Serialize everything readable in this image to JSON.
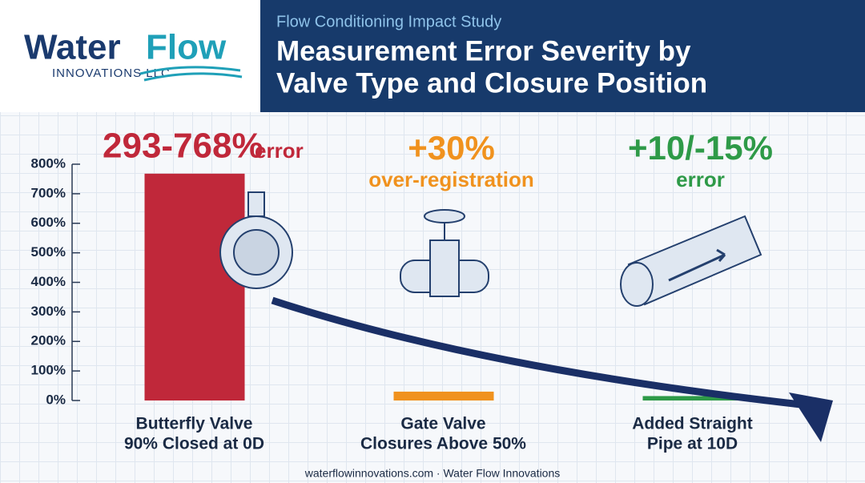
{
  "header": {
    "logo": {
      "name": [
        "Water",
        "Flow"
      ],
      "tagline": "INNOVATIONS LLC"
    },
    "subtitle": "Flow Conditioning Impact Study",
    "title": [
      "Measurement Error Severity by",
      "Valve Type and Closure Position"
    ]
  },
  "chart_data": {
    "type": "bar",
    "categories": [
      [
        "Butterfly Valve",
        "90% Closed at 0D"
      ],
      [
        "Gate Valve",
        "Closures Above 50%"
      ],
      [
        "Added Straight",
        "Pipe at 10D"
      ]
    ],
    "values": [
      768,
      30,
      15
    ],
    "colors": [
      "#c0283a",
      "#f0921e",
      "#2e9a48"
    ],
    "annotations": [
      [
        "293-768%",
        "error"
      ],
      [
        "+30%",
        "over-registration"
      ],
      [
        "+10/-15%",
        "error"
      ]
    ],
    "ylim": [
      0,
      800
    ],
    "yticks": [
      {
        "value": 0,
        "label": "0%"
      },
      {
        "value": 100,
        "label": "100%"
      },
      {
        "value": 200,
        "label": "200%"
      },
      {
        "value": 300,
        "label": "300%"
      },
      {
        "value": 400,
        "label": "400%"
      },
      {
        "value": 500,
        "label": "500%"
      },
      {
        "value": 600,
        "label": "600%"
      },
      {
        "value": 700,
        "label": "700%"
      },
      {
        "value": 800,
        "label": "800%"
      }
    ]
  },
  "footer": "waterflowinnovations.com · Water Flow Innovations"
}
